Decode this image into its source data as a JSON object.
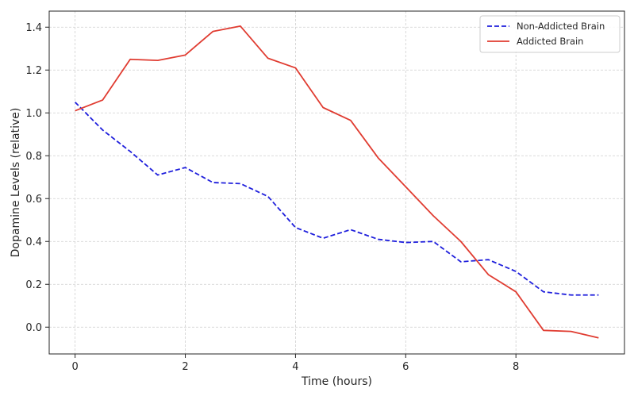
{
  "chart_data": {
    "type": "line",
    "title": "",
    "xlabel": "Time (hours)",
    "ylabel": "Dopamine Levels (relative)",
    "xlim": [
      -0.47,
      9.97
    ],
    "ylim": [
      -0.125,
      1.475
    ],
    "x_ticks": [
      0,
      2,
      4,
      6,
      8
    ],
    "y_ticks": [
      0.0,
      0.2,
      0.4,
      0.6,
      0.8,
      1.0,
      1.2,
      1.4
    ],
    "x_tick_labels": [
      "0",
      "2",
      "4",
      "6",
      "8"
    ],
    "y_tick_labels": [
      "0.0",
      "0.2",
      "0.4",
      "0.6",
      "0.8",
      "1.0",
      "1.2",
      "1.4"
    ],
    "grid": true,
    "legend_position": "top-right",
    "x": [
      0,
      0.5,
      1,
      1.5,
      2,
      2.5,
      3,
      3.5,
      4,
      4.5,
      5,
      5.5,
      6,
      6.5,
      7,
      7.5,
      8,
      8.5,
      9,
      9.5
    ],
    "series": [
      {
        "name": "Non-Addicted Brain",
        "color": "#1f1fdc",
        "style": "dashed",
        "values": [
          1.05,
          0.92,
          0.82,
          0.71,
          0.745,
          0.675,
          0.67,
          0.61,
          0.465,
          0.415,
          0.455,
          0.41,
          0.395,
          0.4,
          0.305,
          0.315,
          0.26,
          0.165,
          0.15,
          0.15
        ]
      },
      {
        "name": "Addicted Brain",
        "color": "#e03c31",
        "style": "solid",
        "values": [
          1.01,
          1.06,
          1.25,
          1.245,
          1.27,
          1.38,
          1.405,
          1.255,
          1.21,
          1.025,
          0.965,
          0.79,
          0.655,
          0.52,
          0.4,
          0.245,
          0.165,
          -0.015,
          -0.02,
          -0.05
        ]
      }
    ]
  }
}
